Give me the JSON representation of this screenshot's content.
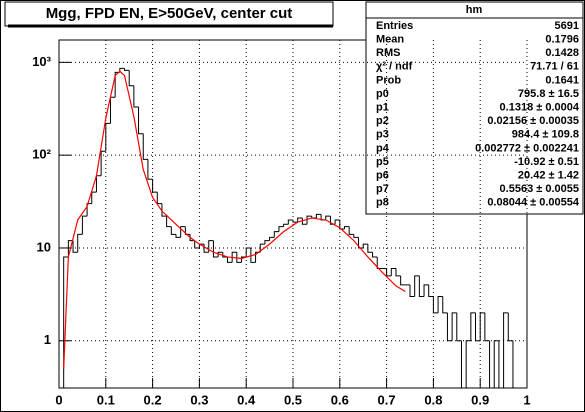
{
  "chart_data": {
    "type": "histogram",
    "title": "Mgg, FPD EN, E>50GeV, center cut",
    "bins": [
      0,
      0.01,
      0.02,
      0.03,
      0.04,
      0.05,
      0.06,
      0.07,
      0.08,
      0.09,
      0.1,
      0.11,
      0.12,
      0.13,
      0.14,
      0.15,
      0.16,
      0.17,
      0.18,
      0.19,
      0.2,
      0.21,
      0.22,
      0.23,
      0.24,
      0.25,
      0.26,
      0.27,
      0.28,
      0.29,
      0.3,
      0.31,
      0.32,
      0.33,
      0.34,
      0.35,
      0.36,
      0.37,
      0.38,
      0.39,
      0.4,
      0.41,
      0.42,
      0.43,
      0.44,
      0.45,
      0.46,
      0.47,
      0.48,
      0.49,
      0.5,
      0.51,
      0.52,
      0.53,
      0.54,
      0.55,
      0.56,
      0.57,
      0.58,
      0.59,
      0.6,
      0.61,
      0.62,
      0.63,
      0.64,
      0.65,
      0.66,
      0.67,
      0.68,
      0.69,
      0.7,
      0.71,
      0.72,
      0.73,
      0.74,
      0.75,
      0.76,
      0.77,
      0.78,
      0.79,
      0.8,
      0.81,
      0.82,
      0.83,
      0.84,
      0.85,
      0.86,
      0.87,
      0.88,
      0.89,
      0.9,
      0.91,
      0.92,
      0.93,
      0.94,
      0.95,
      0.96,
      0.97,
      0.98,
      0.99,
      1
    ],
    "values": [
      0,
      8,
      12,
      9,
      14,
      22,
      30,
      40,
      60,
      110,
      220,
      420,
      780,
      860,
      820,
      560,
      330,
      170,
      90,
      55,
      40,
      30,
      22,
      17,
      14,
      13,
      17,
      14,
      12,
      10,
      11,
      9,
      12,
      8,
      9,
      8,
      7,
      9,
      7,
      8,
      10,
      7,
      9,
      11,
      12,
      13,
      15,
      17,
      18,
      20,
      19,
      21,
      18,
      22,
      21,
      23,
      20,
      22,
      18,
      20,
      16,
      17,
      14,
      13,
      10,
      11,
      9,
      8,
      6,
      6,
      5,
      6,
      5,
      4,
      4,
      3,
      5,
      3,
      4,
      3,
      2,
      3,
      2,
      1,
      2,
      1,
      0,
      1,
      2,
      1,
      2,
      1,
      0,
      1,
      0,
      2,
      1,
      0,
      0,
      0
    ],
    "color": "#000000",
    "fit": {
      "color": "#ff0000",
      "x": [
        0.01,
        0.02,
        0.04,
        0.06,
        0.08,
        0.1,
        0.12,
        0.13,
        0.14,
        0.16,
        0.18,
        0.2,
        0.22,
        0.25,
        0.28,
        0.3,
        0.33,
        0.36,
        0.39,
        0.42,
        0.45,
        0.48,
        0.51,
        0.54,
        0.57,
        0.6,
        0.63,
        0.66,
        0.69,
        0.72,
        0.74
      ],
      "values": [
        0.5,
        8,
        20,
        28,
        60,
        250,
        720,
        800,
        720,
        260,
        70,
        35,
        25,
        18,
        13,
        11,
        9,
        8,
        7.7,
        8.5,
        11,
        15,
        19,
        21,
        20,
        16.5,
        12,
        8,
        5.5,
        3.9,
        3.4
      ]
    },
    "xlim": [
      0,
      1
    ],
    "xticks": [
      0,
      0.1,
      0.2,
      0.3,
      0.4,
      0.5,
      0.6,
      0.7,
      0.8,
      0.9,
      1
    ],
    "ylim": [
      0.31,
      1740
    ],
    "log_y": true,
    "grid": true,
    "yticks": [
      1,
      10,
      {
        "value": 100,
        "label": "10²"
      },
      {
        "value": 1000,
        "label": "10³"
      }
    ],
    "stats": {
      "title": "hm",
      "rows": [
        [
          "Entries",
          "5691"
        ],
        [
          "Mean",
          "0.1796"
        ],
        [
          "RMS",
          "0.1428"
        ],
        [
          "χ² / ndf",
          "71.71 / 61"
        ],
        [
          "Prob",
          "0.1641"
        ],
        [
          "p0",
          "795.8 ± 16.5"
        ],
        [
          "p1",
          "0.1318 ± 0.0004"
        ],
        [
          "p2",
          "0.02156 ± 0.00035"
        ],
        [
          "p3",
          "984.4 ± 109.8"
        ],
        [
          "p4",
          "0.002772 ± 0.002241"
        ],
        [
          "p5",
          "-10.92 ± 0.51"
        ],
        [
          "p6",
          "20.42 ± 1.42"
        ],
        [
          "p7",
          "0.5563 ± 0.0055"
        ],
        [
          "p8",
          "0.08044 ± 0.00554"
        ]
      ]
    }
  }
}
